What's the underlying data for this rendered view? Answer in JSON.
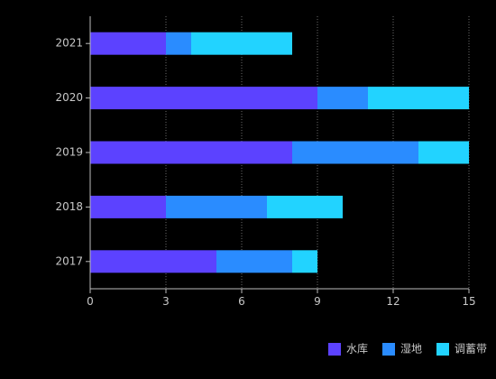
{
  "chart_data": {
    "type": "bar",
    "orientation": "horizontal",
    "stacked": true,
    "categories": [
      "2017",
      "2018",
      "2019",
      "2020",
      "2021"
    ],
    "series": [
      {
        "name": "水库",
        "values": [
          5,
          3,
          8,
          9,
          3
        ],
        "color": "#5c42ff"
      },
      {
        "name": "湿地",
        "values": [
          3,
          4,
          5,
          2,
          1
        ],
        "color": "#2a8cff"
      },
      {
        "name": "调蓄带",
        "values": [
          1,
          3,
          2,
          4,
          4
        ],
        "color": "#22d3ff"
      }
    ],
    "xlim": [
      0,
      15
    ],
    "xticks": [
      0,
      3,
      6,
      9,
      12,
      15
    ],
    "grid": true,
    "legend_position": "bottom-right",
    "title": "",
    "xlabel": "",
    "ylabel": ""
  }
}
